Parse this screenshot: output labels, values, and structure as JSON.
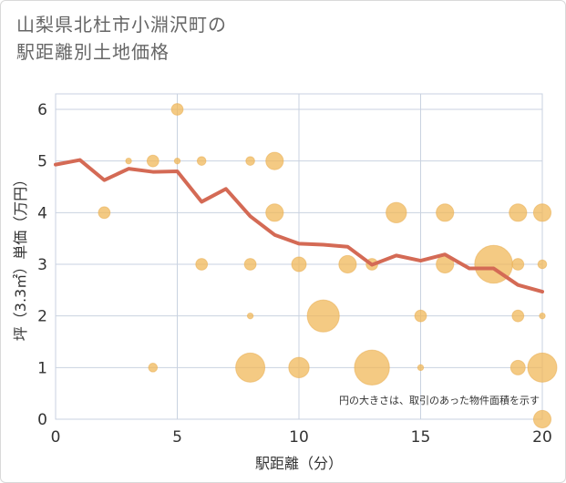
{
  "title_lines": [
    "山梨県北杜市小淵沢町の",
    "駅距離別土地価格"
  ],
  "chart_data": {
    "type": "scatter",
    "xlabel": "駅距離（分）",
    "ylabel": "坪（3.3㎡）単価（万円）",
    "xlim": [
      0,
      20
    ],
    "ylim": [
      0,
      6.3
    ],
    "xticks": [
      0,
      5,
      10,
      15,
      20
    ],
    "yticks": [
      0,
      1,
      2,
      3,
      4,
      5,
      6
    ],
    "grid": true,
    "note": "円の大きさは、取引のあった物件面積を示す",
    "colors": {
      "bubble": "#f0b85a",
      "line": "#d46a55",
      "grid": "#c9d2e0"
    },
    "scatter": [
      {
        "x": 2,
        "y": 4,
        "size": 2
      },
      {
        "x": 3,
        "y": 5,
        "size": 1
      },
      {
        "x": 4,
        "y": 5,
        "size": 2
      },
      {
        "x": 4,
        "y": 1,
        "size": 1.5
      },
      {
        "x": 5,
        "y": 6,
        "size": 2
      },
      {
        "x": 5,
        "y": 5,
        "size": 1
      },
      {
        "x": 6,
        "y": 5,
        "size": 1.5
      },
      {
        "x": 6,
        "y": 3,
        "size": 2
      },
      {
        "x": 8,
        "y": 5,
        "size": 1.5
      },
      {
        "x": 8,
        "y": 3,
        "size": 2
      },
      {
        "x": 8,
        "y": 2,
        "size": 1
      },
      {
        "x": 8,
        "y": 1,
        "size": 5
      },
      {
        "x": 9,
        "y": 5,
        "size": 3
      },
      {
        "x": 9,
        "y": 4,
        "size": 3
      },
      {
        "x": 10,
        "y": 3,
        "size": 2.5
      },
      {
        "x": 10,
        "y": 1,
        "size": 3.5
      },
      {
        "x": 11,
        "y": 2,
        "size": 5.5
      },
      {
        "x": 12,
        "y": 3,
        "size": 3
      },
      {
        "x": 13,
        "y": 3,
        "size": 2
      },
      {
        "x": 13,
        "y": 1,
        "size": 6
      },
      {
        "x": 14,
        "y": 4,
        "size": 3.5
      },
      {
        "x": 15,
        "y": 2,
        "size": 2
      },
      {
        "x": 15,
        "y": 1,
        "size": 1
      },
      {
        "x": 16,
        "y": 4,
        "size": 3
      },
      {
        "x": 16,
        "y": 3,
        "size": 3
      },
      {
        "x": 18,
        "y": 3,
        "size": 6.5
      },
      {
        "x": 19,
        "y": 4,
        "size": 3
      },
      {
        "x": 19,
        "y": 3,
        "size": 2
      },
      {
        "x": 19,
        "y": 2,
        "size": 2
      },
      {
        "x": 19,
        "y": 1,
        "size": 2.5
      },
      {
        "x": 20,
        "y": 4,
        "size": 3
      },
      {
        "x": 20,
        "y": 3,
        "size": 1.5
      },
      {
        "x": 20,
        "y": 2,
        "size": 1
      },
      {
        "x": 20,
        "y": 1,
        "size": 5
      },
      {
        "x": 20,
        "y": 0,
        "size": 3
      }
    ],
    "line": {
      "x": [
        0,
        1,
        2,
        3,
        4,
        5,
        6,
        7,
        8,
        9,
        10,
        11,
        12,
        13,
        14,
        15,
        16,
        17,
        18,
        19,
        20
      ],
      "y": [
        4.93,
        5.02,
        4.63,
        4.85,
        4.79,
        4.8,
        4.21,
        4.46,
        3.93,
        3.57,
        3.4,
        3.38,
        3.34,
        2.99,
        3.17,
        3.07,
        3.19,
        2.92,
        2.92,
        2.6,
        2.47
      ]
    }
  }
}
